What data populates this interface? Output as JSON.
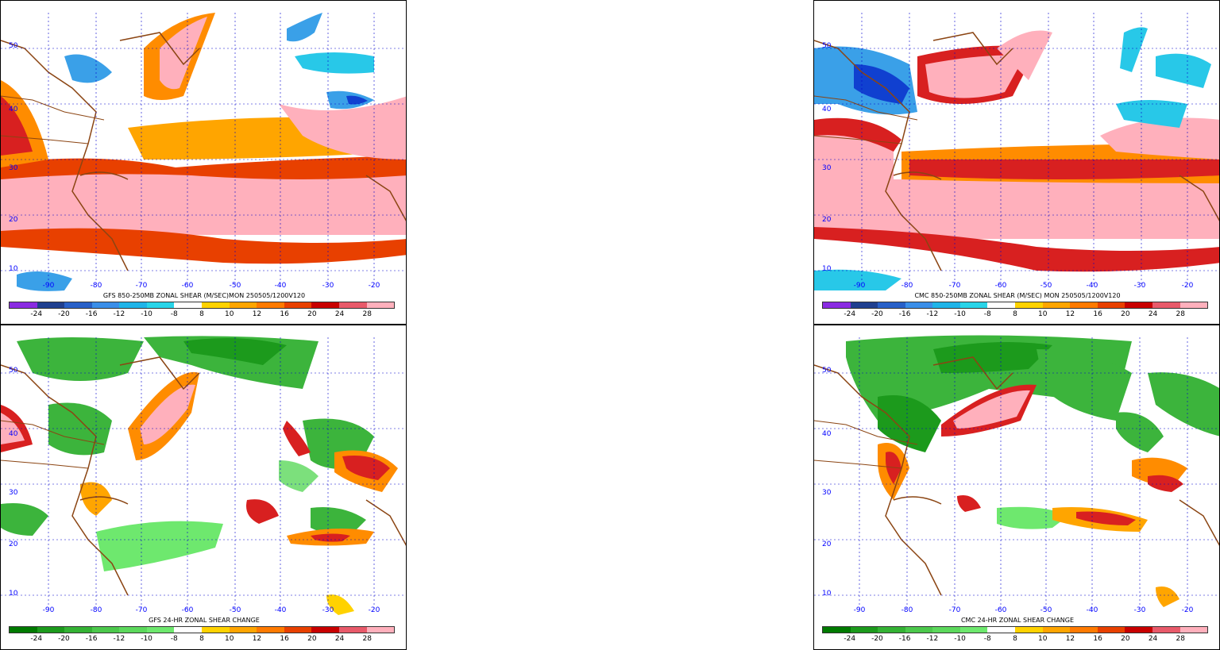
{
  "panels": [
    {
      "id": "gfs-shear",
      "title": "GFS 850-250MB ZONAL SHEAR (M/SEC)MON 250505/1200V120",
      "scheme": "shear",
      "lats": [
        "50",
        "40",
        "30",
        "20",
        "10"
      ],
      "lons": [
        "-90",
        "-80",
        "-70",
        "-60",
        "-50",
        "-40",
        "-30",
        "-20"
      ]
    },
    {
      "id": "cmc-shear",
      "title": "CMC 850-250MB ZONAL SHEAR (M/SEC) MON 250505/1200V120",
      "scheme": "shear",
      "lats": [
        "50",
        "40",
        "30",
        "20",
        "10"
      ],
      "lons": [
        "-90",
        "-80",
        "-70",
        "-60",
        "-50",
        "-40",
        "-30",
        "-20"
      ]
    },
    {
      "id": "gfs-change",
      "title": "GFS 24-HR ZONAL SHEAR CHANGE",
      "scheme": "change",
      "lats": [
        "50",
        "40",
        "30",
        "20",
        "10"
      ],
      "lons": [
        "-90",
        "-80",
        "-70",
        "-60",
        "-50",
        "-40",
        "-30",
        "-20"
      ]
    },
    {
      "id": "cmc-change",
      "title": "CMC 24-HR ZONAL SHEAR CHANGE",
      "scheme": "change",
      "lats": [
        "50",
        "40",
        "30",
        "20",
        "10"
      ],
      "lons": [
        "-90",
        "-80",
        "-70",
        "-60",
        "-50",
        "-40",
        "-30",
        "-20"
      ]
    }
  ],
  "colorbar": {
    "labels": [
      "-24",
      "-20",
      "-16",
      "-12",
      "-10",
      "-8",
      "8",
      "10",
      "12",
      "16",
      "20",
      "24",
      "28"
    ],
    "shear_colors": [
      "#8a2be2",
      "#1f3f8f",
      "#2860c8",
      "#3a8ee8",
      "#1fb4e8",
      "#28d4e8",
      "#ffffff",
      "#ffd200",
      "#ffa500",
      "#ff7a00",
      "#e84000",
      "#c80000",
      "#e85a6a",
      "#ffb0bc"
    ],
    "change_colors": [
      "#007a00",
      "#1c9a1c",
      "#34b234",
      "#4cc84c",
      "#5cd85c",
      "#6ee86e",
      "#ffffff",
      "#ffd200",
      "#ffa500",
      "#ff7a00",
      "#e84000",
      "#c80000",
      "#e85a6a",
      "#ffb0bc"
    ]
  },
  "map_colors": {
    "border": "#8b4513",
    "grid": "#0000cc",
    "pink": "#ffb0bc",
    "red": "#d82020",
    "orange": "#ff8c00",
    "yellow": "#ffd200",
    "blue": "#3aa0e8",
    "cyan": "#28c8e8",
    "darkblue": "#1040d0",
    "green": "#3cb43c",
    "lightgreen": "#7ce07c"
  }
}
